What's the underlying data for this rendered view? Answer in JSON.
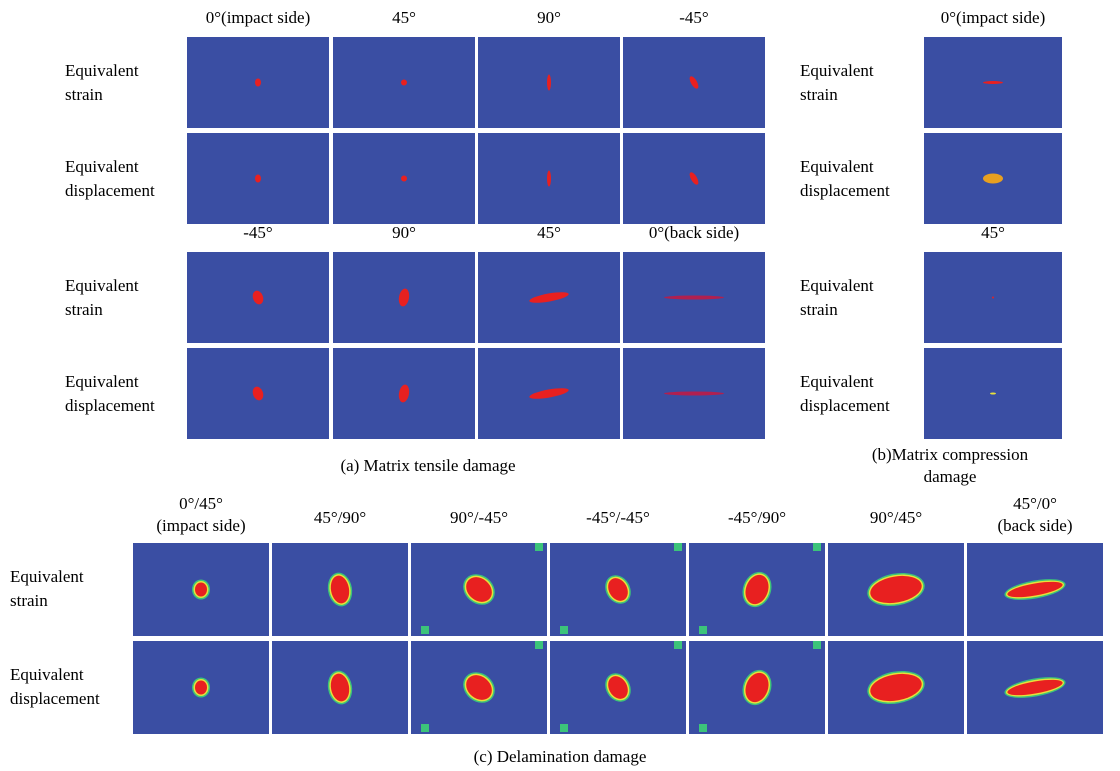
{
  "panel_a": {
    "groups": [
      {
        "columns": [
          "0°(impact side)",
          "45°",
          "90°",
          "-45°"
        ],
        "rows": [
          "Equivalent\nstrain",
          "Equivalent\ndisplacement"
        ]
      },
      {
        "columns": [
          "-45°",
          "90°",
          "45°",
          "0°(back side)"
        ],
        "rows": [
          "Equivalent\nstrain",
          "Equivalent\ndisplacement"
        ]
      }
    ],
    "caption": "(a) Matrix tensile damage"
  },
  "panel_b": {
    "groups": [
      {
        "columns": [
          "0°(impact side)"
        ],
        "rows": [
          "Equivalent\nstrain",
          "Equivalent\ndisplacement"
        ]
      },
      {
        "columns": [
          "45°"
        ],
        "rows": [
          "Equivalent\nstrain",
          "Equivalent\ndisplacement"
        ]
      }
    ],
    "caption": "(b)Matrix compression damage"
  },
  "panel_c": {
    "columns": [
      "0°/45°\n(impact side)",
      "45°/90°",
      "90°/-45°",
      "-45°/-45°",
      "-45°/90°",
      "90°/45°",
      "45°/0°\n(back side)"
    ],
    "rows": [
      "Equivalent\nstrain",
      "Equivalent\ndisplacement"
    ],
    "caption": "(c) Delamination damage"
  }
}
